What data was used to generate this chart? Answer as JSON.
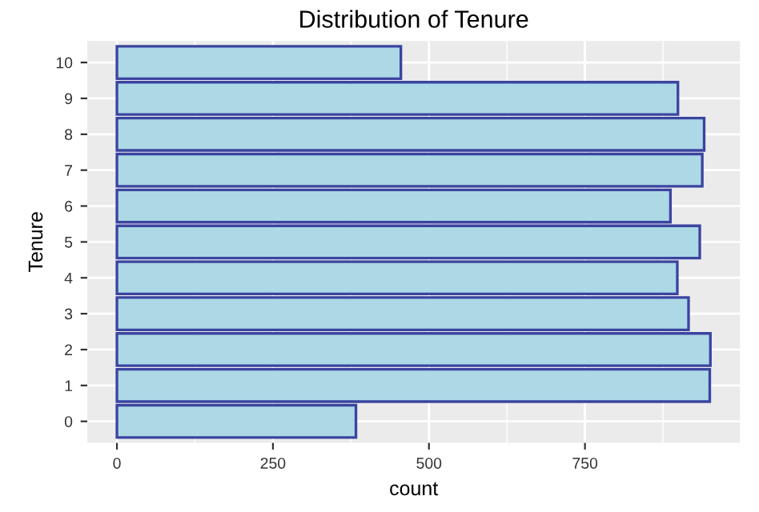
{
  "chart_data": {
    "type": "bar",
    "orientation": "horizontal",
    "title": "Distribution of Tenure",
    "xlabel": "count",
    "ylabel": "Tenure",
    "categories": [
      "10",
      "9",
      "8",
      "7",
      "6",
      "5",
      "4",
      "3",
      "2",
      "1",
      "0"
    ],
    "values": [
      455,
      899,
      941,
      938,
      887,
      934,
      898,
      916,
      951,
      950,
      383
    ],
    "color": "#add8e6",
    "xlim": [
      -47.5,
      998.5
    ],
    "xticks": [
      0,
      250,
      500,
      750
    ],
    "grid": true
  }
}
